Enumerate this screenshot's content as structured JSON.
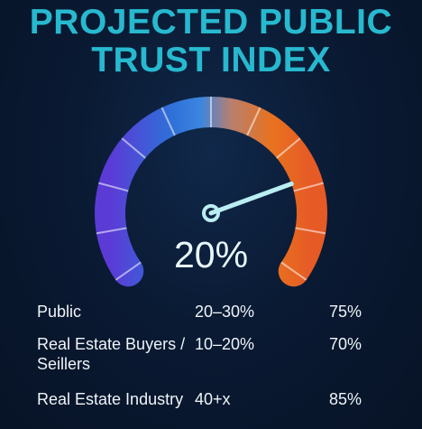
{
  "title": {
    "line1": "PROJECTED PUBLIC",
    "line2": "TRUST INDEX"
  },
  "gauge": {
    "value_text": "20%",
    "needle_fraction": 0.78,
    "colors": [
      "#5b3bd6",
      "#2f6fd8",
      "#3c86e0",
      "#b87f6e",
      "#e8721f",
      "#e65a26"
    ]
  },
  "rows": [
    {
      "label": "Public",
      "range": "20–30%",
      "pct": "75%"
    },
    {
      "label": "Real Estate Buyers / Seillers",
      "range": "10–20%",
      "pct": "70%"
    },
    {
      "label": "Real Estate Industry",
      "range": "40+x",
      "pct": "85%"
    }
  ]
}
